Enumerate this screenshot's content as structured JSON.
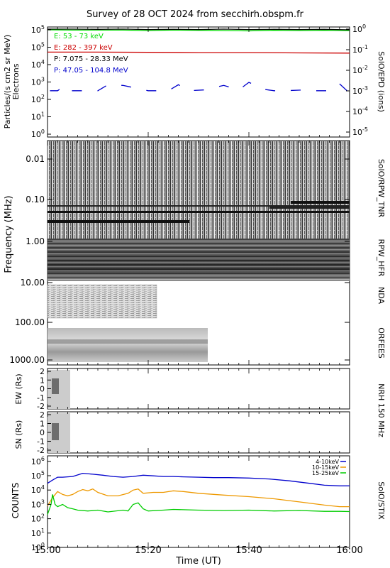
{
  "title": "Survey of 28 OCT 2024 from secchirh.obspm.fr",
  "chart_data": [
    {
      "panel": "SolO/EPD",
      "type": "line",
      "log_scale": true,
      "ylabel": "Particles/(s cm2 sr MeV)",
      "ylabel2": "Electrons",
      "y_ticks": [
        "10^0",
        "10^1",
        "10^2",
        "10^3",
        "10^4",
        "10^5",
        "10^5"
      ],
      "right_label": "SolO/EPD (ions)",
      "right_ticks": [
        "10^-5",
        "10^-4",
        "10^-3",
        "10^-2",
        "10^-1",
        "10^0"
      ],
      "ylim": [
        0.3,
        300000
      ],
      "series": [
        {
          "name": "E: 53 - 73 keV",
          "color": "#00dd00",
          "x": [
            0,
            5,
            10,
            15,
            20,
            25,
            30,
            35,
            40,
            45,
            50,
            55,
            60
          ],
          "values": [
            300000,
            290000,
            290000,
            290000,
            270000,
            290000,
            280000,
            270000,
            260000,
            280000,
            270000,
            280000,
            270000
          ]
        },
        {
          "name": "E: 282 - 397 keV",
          "color": "#cc0000",
          "x": [
            0,
            10,
            20,
            30,
            40,
            50,
            60
          ],
          "values": [
            16000,
            16000,
            15500,
            15000,
            15000,
            14500,
            14000
          ]
        },
        {
          "name": "P: 7.075 - 28.33 MeV",
          "color": "#000000",
          "x": [
            0,
            5,
            10,
            15,
            20,
            25,
            30,
            35,
            40,
            45,
            50,
            55,
            60
          ],
          "values": [
            330000,
            330000,
            320000,
            330000,
            310000,
            320000,
            310000,
            330000,
            310000,
            320000,
            310000,
            320000,
            300000
          ]
        },
        {
          "name": "P: 47.05 - 104.8 MeV",
          "color": "#0000cc",
          "x": [
            0.5,
            2,
            3.5,
            4.8,
            10,
            12,
            15,
            20,
            24,
            26,
            28,
            31,
            35,
            38,
            40,
            43,
            45,
            47,
            51,
            53,
            56,
            58,
            59.5
          ],
          "values": [
            100,
            100,
            200,
            100,
            100,
            220,
            200,
            100,
            100,
            220,
            100,
            110,
            200,
            110,
            300,
            120,
            100,
            100,
            110,
            100,
            100,
            250,
            100
          ]
        }
      ]
    },
    {
      "panel": "SolO/RPW_TNR",
      "type": "heatmap",
      "ylabel": "Frequency (MHz)",
      "y_ticks": [
        "0.01",
        "0.10",
        "1.00"
      ],
      "right_label": "SolO/RPW_TNR"
    },
    {
      "panel": "RPW_HFR",
      "type": "heatmap",
      "right_label": "RPW_HFR"
    },
    {
      "panel": "NDA",
      "type": "heatmap",
      "y_ticks": [
        "10.00",
        "100.00"
      ],
      "right_label": "NDA"
    },
    {
      "panel": "ORFEES",
      "type": "heatmap",
      "y_ticks": [
        "1000.00"
      ],
      "right_label": "ORFEES"
    },
    {
      "panel": "NRH 150 MHz EW",
      "type": "heatmap",
      "ylabel": "EW (Rs)",
      "y_ticks": [
        "2",
        "1",
        "0",
        "-1",
        "-2"
      ],
      "right_label": "NRH 150 MHz"
    },
    {
      "panel": "NRH 150 MHz SN",
      "type": "heatmap",
      "ylabel": "SN (Rs)",
      "y_ticks": [
        "2",
        "1",
        "0",
        "-1",
        "-2"
      ]
    },
    {
      "panel": "SolO/STIX",
      "type": "line",
      "log_scale": true,
      "ylabel": "COUNTS",
      "y_ticks": [
        "10^0",
        "10^1",
        "10^2",
        "10^3",
        "10^4",
        "10^5",
        "10^6"
      ],
      "ylim": [
        1,
        1000000
      ],
      "right_label": "SolO/STIX",
      "xlabel": "Time (UT)",
      "x_ticks": [
        "15:00",
        "15:20",
        "15:40",
        "16:00"
      ],
      "series": [
        {
          "name": "4-10keV",
          "color": "#0000cc",
          "x": [
            0,
            1,
            2,
            3,
            5,
            7,
            9,
            11,
            13,
            15,
            17,
            19,
            21,
            23,
            25,
            27,
            30,
            33,
            36,
            40,
            44,
            48,
            52,
            55,
            58,
            60
          ],
          "values": [
            30000,
            50000,
            80000,
            80000,
            90000,
            150000,
            130000,
            110000,
            90000,
            80000,
            90000,
            110000,
            100000,
            90000,
            90000,
            85000,
            80000,
            75000,
            75000,
            70000,
            60000,
            45000,
            30000,
            22000,
            20000,
            20000
          ]
        },
        {
          "name": "10-15keV",
          "color": "#ee9900",
          "x": [
            0,
            1,
            2,
            3,
            4,
            5,
            6,
            7,
            8,
            9,
            10,
            12,
            14,
            16,
            17,
            18,
            19,
            21,
            23,
            25,
            27,
            30,
            35,
            40,
            45,
            50,
            55,
            58,
            60
          ],
          "values": [
            800,
            3000,
            8000,
            5000,
            4000,
            5000,
            8000,
            11000,
            9000,
            12000,
            7000,
            4000,
            4000,
            6000,
            10000,
            12000,
            6000,
            7000,
            7000,
            9000,
            8000,
            6000,
            4500,
            3500,
            2500,
            1500,
            900,
            700,
            700
          ]
        },
        {
          "name": "15-25keV",
          "color": "#00cc00",
          "x": [
            0,
            0.7,
            1,
            1.5,
            2,
            3,
            4,
            5,
            6,
            8,
            10,
            12,
            15,
            16,
            17,
            18,
            19,
            20,
            23,
            25,
            30,
            35,
            40,
            45,
            50,
            55,
            58,
            60
          ],
          "values": [
            200,
            1000,
            5000,
            1000,
            700,
            1000,
            600,
            500,
            400,
            350,
            400,
            300,
            400,
            350,
            1000,
            1300,
            500,
            350,
            400,
            450,
            400,
            380,
            400,
            350,
            380,
            330,
            330,
            320
          ]
        }
      ]
    }
  ]
}
